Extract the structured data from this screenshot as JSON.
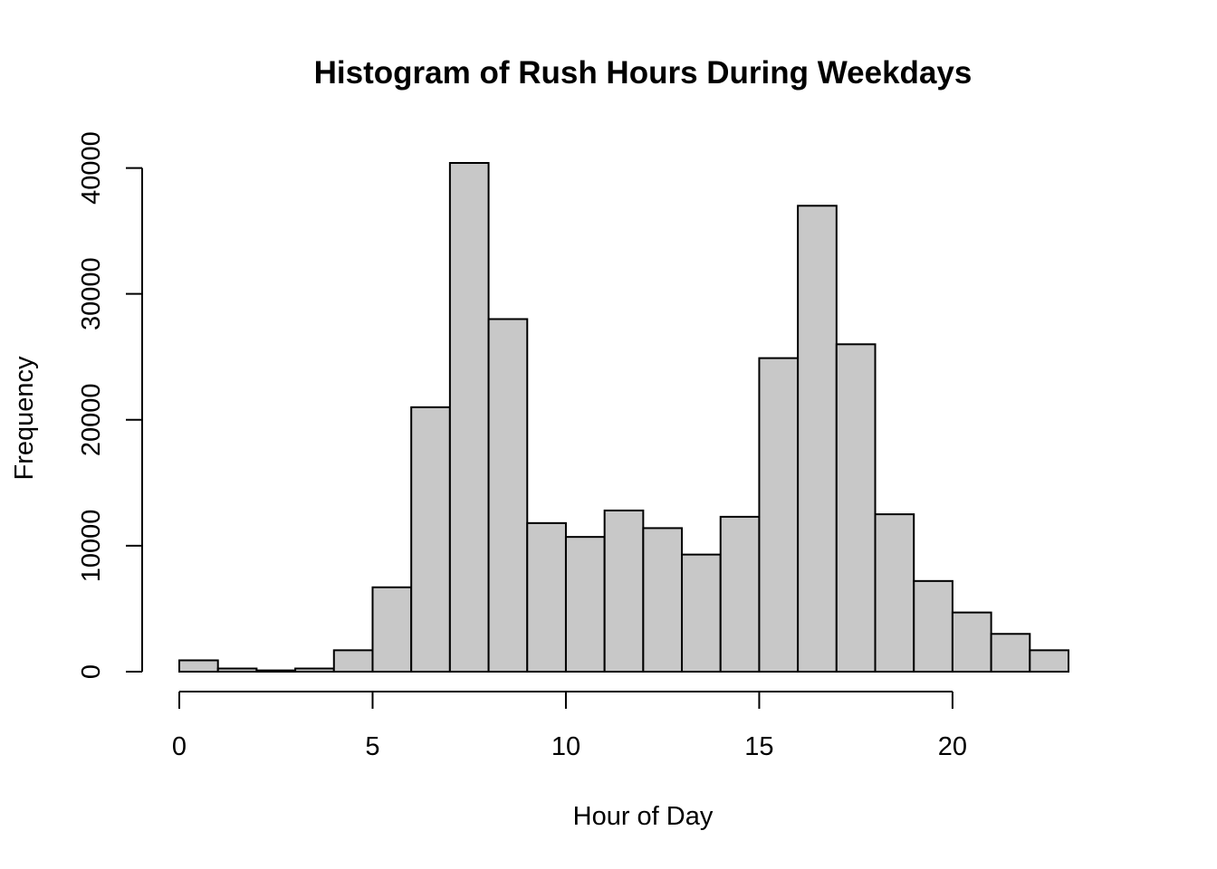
{
  "chart_data": {
    "type": "bar",
    "subtype": "histogram",
    "title": "Histogram of Rush Hours During Weekdays",
    "xlabel": "Hour of Day",
    "ylabel": "Frequency",
    "bins": [
      {
        "start": 0,
        "end": 1,
        "count": 900
      },
      {
        "start": 1,
        "end": 2,
        "count": 250
      },
      {
        "start": 2,
        "end": 3,
        "count": 100
      },
      {
        "start": 3,
        "end": 4,
        "count": 250
      },
      {
        "start": 4,
        "end": 5,
        "count": 1700
      },
      {
        "start": 5,
        "end": 6,
        "count": 6700
      },
      {
        "start": 6,
        "end": 7,
        "count": 21000
      },
      {
        "start": 7,
        "end": 8,
        "count": 40400
      },
      {
        "start": 8,
        "end": 9,
        "count": 28000
      },
      {
        "start": 9,
        "end": 10,
        "count": 11800
      },
      {
        "start": 10,
        "end": 11,
        "count": 10700
      },
      {
        "start": 11,
        "end": 12,
        "count": 12800
      },
      {
        "start": 12,
        "end": 13,
        "count": 11400
      },
      {
        "start": 13,
        "end": 14,
        "count": 9300
      },
      {
        "start": 14,
        "end": 15,
        "count": 12300
      },
      {
        "start": 15,
        "end": 16,
        "count": 24900
      },
      {
        "start": 16,
        "end": 17,
        "count": 37000
      },
      {
        "start": 17,
        "end": 18,
        "count": 26000
      },
      {
        "start": 18,
        "end": 19,
        "count": 12500
      },
      {
        "start": 19,
        "end": 20,
        "count": 7200
      },
      {
        "start": 20,
        "end": 21,
        "count": 4700
      },
      {
        "start": 21,
        "end": 22,
        "count": 3000
      },
      {
        "start": 22,
        "end": 23,
        "count": 1700
      }
    ],
    "xlim": [
      0,
      23
    ],
    "ylim": [
      0,
      40400
    ],
    "x_ticks": [
      0,
      5,
      10,
      15,
      20
    ],
    "x_tick_labels": [
      "0",
      "5",
      "10",
      "15",
      "20"
    ],
    "y_ticks": [
      0,
      10000,
      20000,
      30000,
      40000
    ],
    "y_tick_labels": [
      "0",
      "10000",
      "20000",
      "30000",
      "40000"
    ],
    "grid": false,
    "legend": "none",
    "bar_color": "#c8c8c8",
    "edge_color": "#000000"
  }
}
